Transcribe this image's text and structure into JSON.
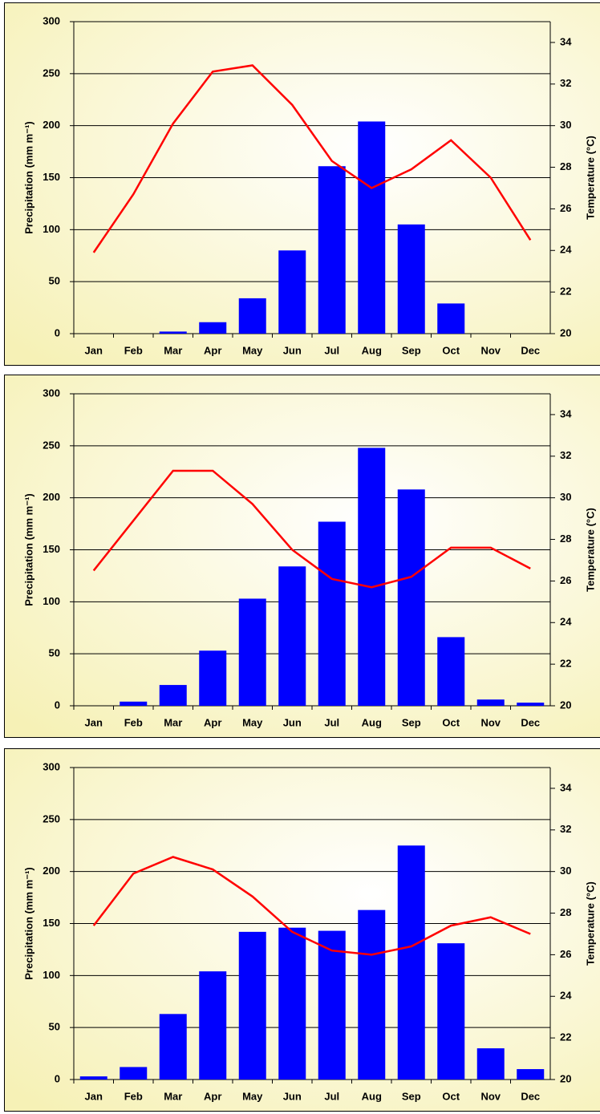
{
  "chart_data": [
    {
      "type": "bar",
      "categories": [
        "Jan",
        "Feb",
        "Mar",
        "Apr",
        "May",
        "Jun",
        "Jul",
        "Aug",
        "Sep",
        "Oct",
        "Nov",
        "Dec"
      ],
      "y_label": "Precipitation (mm m⁻¹)",
      "y2_label": "Temperature (°C)",
      "ylim": [
        0,
        300
      ],
      "yticks": [
        0,
        50,
        100,
        150,
        200,
        250,
        300
      ],
      "y2lim": [
        20,
        35
      ],
      "y2ticks": [
        20,
        22,
        24,
        26,
        28,
        30,
        32,
        34
      ],
      "grid": true,
      "series": [
        {
          "type": "bar",
          "color": "#0000ff",
          "values": [
            0,
            0,
            2,
            11,
            34,
            80,
            161,
            204,
            105,
            29,
            0,
            0
          ]
        },
        {
          "type": "line",
          "axis": "y2",
          "color": "#ff0000",
          "values": [
            23.9,
            26.7,
            30.1,
            32.6,
            32.9,
            31.0,
            28.3,
            27.0,
            27.9,
            29.3,
            27.5,
            24.5
          ]
        }
      ]
    },
    {
      "type": "bar",
      "categories": [
        "Jan",
        "Feb",
        "Mar",
        "Apr",
        "May",
        "Jun",
        "Jul",
        "Aug",
        "Sep",
        "Oct",
        "Nov",
        "Dec"
      ],
      "y_label": "Precipitation (mm m⁻¹)",
      "y2_label": "Temperature (°C)",
      "ylim": [
        0,
        300
      ],
      "yticks": [
        0,
        50,
        100,
        150,
        200,
        250,
        300
      ],
      "y2lim": [
        20,
        35
      ],
      "y2ticks": [
        20,
        22,
        24,
        26,
        28,
        30,
        32,
        34
      ],
      "grid": true,
      "series": [
        {
          "type": "bar",
          "color": "#0000ff",
          "values": [
            0,
            4,
            20,
            53,
            103,
            134,
            177,
            248,
            208,
            66,
            6,
            3
          ]
        },
        {
          "type": "line",
          "axis": "y2",
          "color": "#ff0000",
          "values": [
            26.5,
            28.9,
            31.3,
            31.3,
            29.7,
            27.5,
            26.1,
            25.7,
            26.2,
            27.6,
            27.6,
            26.6
          ]
        }
      ]
    },
    {
      "type": "bar",
      "categories": [
        "Jan",
        "Feb",
        "Mar",
        "Apr",
        "May",
        "Jun",
        "Jul",
        "Aug",
        "Sep",
        "Oct",
        "Nov",
        "Dec"
      ],
      "y_label": "Precipitation (mm m⁻¹)",
      "y2_label": "Temperature (°C)",
      "ylim": [
        0,
        300
      ],
      "yticks": [
        0,
        50,
        100,
        150,
        200,
        250,
        300
      ],
      "y2lim": [
        20,
        35
      ],
      "y2ticks": [
        20,
        22,
        24,
        26,
        28,
        30,
        32,
        34
      ],
      "grid": true,
      "series": [
        {
          "type": "bar",
          "color": "#0000ff",
          "values": [
            3,
            12,
            63,
            104,
            142,
            146,
            143,
            163,
            225,
            131,
            30,
            10
          ]
        },
        {
          "type": "line",
          "axis": "y2",
          "color": "#ff0000",
          "values": [
            27.4,
            29.9,
            30.7,
            30.1,
            28.8,
            27.1,
            26.2,
            26.0,
            26.4,
            27.4,
            27.8,
            27.0
          ]
        }
      ]
    }
  ]
}
